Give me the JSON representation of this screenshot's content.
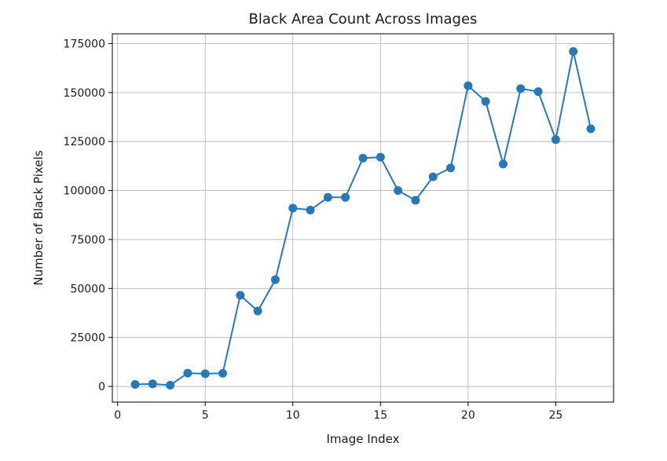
{
  "chart_data": {
    "type": "line",
    "title": "Black Area Count Across Images",
    "xlabel": "Image Index",
    "ylabel": "Number of Black Pixels",
    "xlim": [
      -0.3,
      28.3
    ],
    "ylim": [
      -8000,
      180000
    ],
    "xticks": [
      0,
      5,
      10,
      15,
      20,
      25
    ],
    "yticks": [
      0,
      25000,
      50000,
      75000,
      100000,
      125000,
      150000,
      175000
    ],
    "grid": true,
    "marker": "circle",
    "color": "#2878b5",
    "series": [
      {
        "x": [
          1,
          2,
          3,
          4,
          5,
          6,
          7,
          8,
          9,
          10,
          11,
          12,
          13,
          14,
          15,
          16,
          17,
          18,
          19,
          20,
          21,
          22,
          23,
          24,
          25,
          26,
          27
        ],
        "values": [
          1000,
          1300,
          600,
          6800,
          6500,
          6700,
          46500,
          38500,
          54500,
          91000,
          90000,
          96500,
          96500,
          116500,
          117000,
          100000,
          95000,
          107000,
          111500,
          153500,
          145500,
          113500,
          152000,
          150500,
          126000,
          171000,
          131500
        ]
      }
    ]
  }
}
